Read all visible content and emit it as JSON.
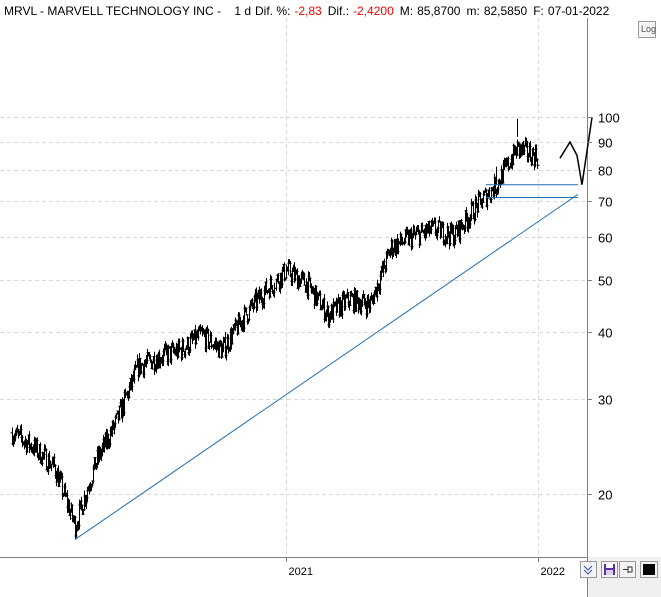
{
  "header": {
    "symbol": "MRVL",
    "sep1": " - ",
    "name": "MARVELL TECHNOLOGY INC",
    "sep2": " - ",
    "period": "1 d",
    "pct_label": "Dif. %:",
    "pct_value": "-2,83",
    "diff_label": "Dif.:",
    "diff_value": "-2,4200",
    "max_label": "M:",
    "max_value": "85,8700",
    "min_label": "m:",
    "min_value": "82,5850",
    "date_label": "F:",
    "date_value": "07-01-2022"
  },
  "controls": {
    "log_label": "Log"
  },
  "icons": [
    "log-scale-button",
    "hide-panel-icon",
    "save-icon",
    "pin-icon",
    "color-square-icon"
  ],
  "colors": {
    "background": "#ffffff",
    "price": "#000000",
    "trendline": "#1f6fb3",
    "negative": "#ff0000",
    "grid": "#d8d8d8"
  },
  "chart_data": {
    "type": "ohlc",
    "scale": "log",
    "ylim": [
      16,
      105
    ],
    "y_ticks": [
      20,
      30,
      40,
      50,
      60,
      70,
      80,
      90,
      100
    ],
    "x_ticks": [
      "2021",
      "2022"
    ],
    "grid": true,
    "xlabel": "",
    "ylabel": "",
    "series": [
      {
        "approx_close_by_month": [
          {
            "date": "2019-12",
            "value": 26.0
          },
          {
            "date": "2020-01",
            "value": 24.5
          },
          {
            "date": "2020-02",
            "value": 22.5
          },
          {
            "date": "2020-03",
            "value": 17.5
          },
          {
            "date": "2020-04",
            "value": 23.0
          },
          {
            "date": "2020-05",
            "value": 27.5
          },
          {
            "date": "2020-06",
            "value": 34.5
          },
          {
            "date": "2020-07",
            "value": 36.0
          },
          {
            "date": "2020-08",
            "value": 37.0
          },
          {
            "date": "2020-09",
            "value": 39.5
          },
          {
            "date": "2020-10",
            "value": 37.0
          },
          {
            "date": "2020-11",
            "value": 42.5
          },
          {
            "date": "2020-12",
            "value": 47.5
          },
          {
            "date": "2021-01",
            "value": 52.0
          },
          {
            "date": "2021-02",
            "value": 49.0
          },
          {
            "date": "2021-03",
            "value": 43.0
          },
          {
            "date": "2021-04",
            "value": 46.0
          },
          {
            "date": "2021-05",
            "value": 45.0
          },
          {
            "date": "2021-06",
            "value": 57.5
          },
          {
            "date": "2021-07",
            "value": 60.0
          },
          {
            "date": "2021-08",
            "value": 62.0
          },
          {
            "date": "2021-09",
            "value": 60.5
          },
          {
            "date": "2021-10",
            "value": 68.0
          },
          {
            "date": "2021-11",
            "value": 75.0
          },
          {
            "date": "2021-12",
            "value": 87.5
          },
          {
            "date": "2022-01",
            "value": 84.5
          }
        ],
        "notable_points": [
          {
            "date": "2020-03",
            "value": 16.5
          },
          {
            "date": "2021-03",
            "value": 41.0
          },
          {
            "date": "2021-11",
            "value": 75.0
          },
          {
            "date": "2021-12",
            "value": 92.0
          }
        ]
      }
    ],
    "trendline": [
      {
        "date": "2020-03",
        "value": 16.5
      },
      {
        "date": "2022-01",
        "value": 72.0
      }
    ],
    "horizontal_lines": [
      {
        "from": "2021-11",
        "to": "2022-01",
        "value": 75.0
      },
      {
        "from": "2021-11",
        "to": "2022-01",
        "value": 71.0
      }
    ],
    "projection_path": [
      {
        "date": "2022-01",
        "value": 84.0
      },
      {
        "date": "2022-01",
        "value": 90.0
      },
      {
        "date": "2022-01",
        "value": 85.0
      },
      {
        "date": "2022-01",
        "value": 75.0
      },
      {
        "date": "2022-01",
        "value": 100.0
      }
    ]
  }
}
